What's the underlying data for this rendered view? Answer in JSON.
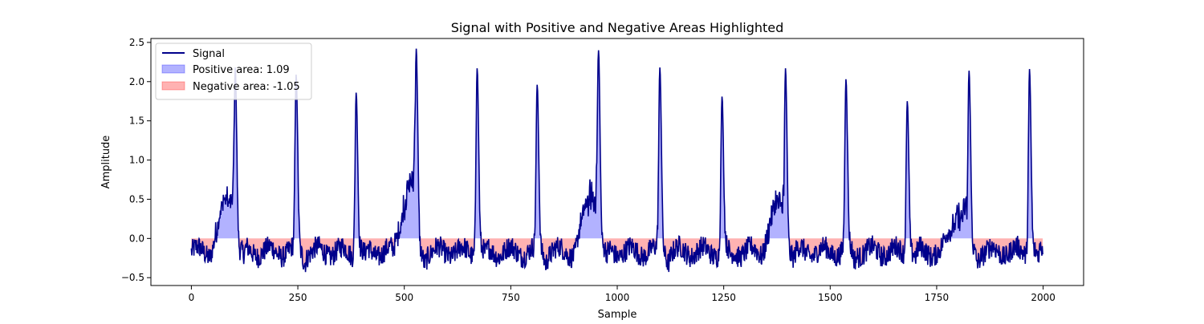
{
  "chart_data": {
    "type": "area",
    "title": "Signal with Positive and Negative Areas Highlighted",
    "xlabel": "Sample",
    "ylabel": "Amplitude",
    "xlim": [
      -95,
      2095
    ],
    "ylim": [
      -0.6,
      2.55
    ],
    "xticks": [
      0,
      250,
      500,
      750,
      1000,
      1250,
      1500,
      1750,
      2000
    ],
    "yticks": [
      -0.5,
      0.0,
      0.5,
      1.0,
      1.5,
      2.0,
      2.5
    ],
    "xtick_labels": [
      "0",
      "250",
      "500",
      "750",
      "1000",
      "1250",
      "1500",
      "1750",
      "2000"
    ],
    "ytick_labels": [
      "−0.5",
      "0.0",
      "0.5",
      "1.0",
      "1.5",
      "2.0",
      "2.5"
    ],
    "grid": false,
    "legend_position": "top-left",
    "series": [
      {
        "name": "Signal",
        "kind": "line",
        "color": "#00008b"
      },
      {
        "name": "Positive area: 1.09",
        "kind": "fill_positive",
        "color": "#0000ff"
      },
      {
        "name": "Negative area: -1.05",
        "kind": "fill_negative",
        "color": "#ff0000"
      }
    ],
    "peaks": [
      {
        "x": 103,
        "y": 2.18
      },
      {
        "x": 246,
        "y": 2.09
      },
      {
        "x": 387,
        "y": 1.86
      },
      {
        "x": 528,
        "y": 2.42
      },
      {
        "x": 671,
        "y": 2.17
      },
      {
        "x": 812,
        "y": 1.96
      },
      {
        "x": 956,
        "y": 2.4
      },
      {
        "x": 1100,
        "y": 2.18
      },
      {
        "x": 1246,
        "y": 1.81
      },
      {
        "x": 1395,
        "y": 2.17
      },
      {
        "x": 1537,
        "y": 2.03
      },
      {
        "x": 1681,
        "y": 1.75
      },
      {
        "x": 1826,
        "y": 2.14
      },
      {
        "x": 1968,
        "y": 2.16
      }
    ],
    "humps": [
      {
        "start": 45,
        "end": 100,
        "level": 0.48
      },
      {
        "start": 475,
        "end": 525,
        "level": 0.65
      },
      {
        "start": 900,
        "end": 955,
        "level": 0.55
      },
      {
        "start": 1340,
        "end": 1390,
        "level": 0.4
      },
      {
        "start": 1760,
        "end": 1820,
        "level": 0.32
      }
    ],
    "baseline": -0.17,
    "n_samples": 2000
  }
}
